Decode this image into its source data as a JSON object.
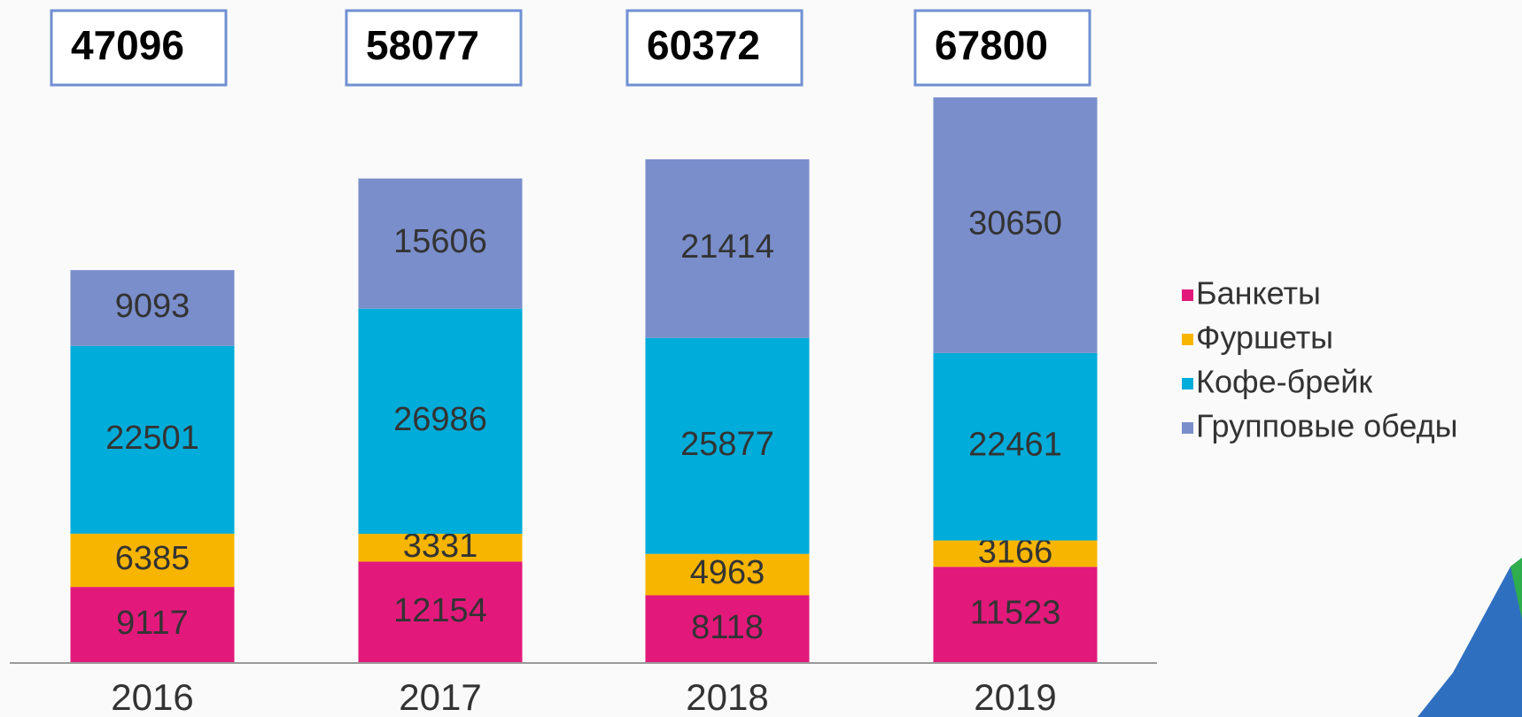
{
  "chart_data": {
    "type": "stacked_bar",
    "categories": [
      "2016",
      "2017",
      "2018",
      "2019"
    ],
    "totals": [
      47096,
      58077,
      60372,
      67800
    ],
    "series": [
      {
        "name": "Банкеты",
        "color": "#e2197b",
        "values": [
          9117,
          12154,
          8118,
          11523
        ]
      },
      {
        "name": "Фуршеты",
        "color": "#f7b500",
        "values": [
          6385,
          3331,
          4963,
          3166
        ]
      },
      {
        "name": "Кофе-брейк",
        "color": "#00acd9",
        "values": [
          22501,
          26986,
          25877,
          22461
        ]
      },
      {
        "name": "Групповые обеды",
        "color": "#7a8ecb",
        "values": [
          9093,
          15606,
          21414,
          30650
        ]
      }
    ],
    "legend": "right"
  }
}
